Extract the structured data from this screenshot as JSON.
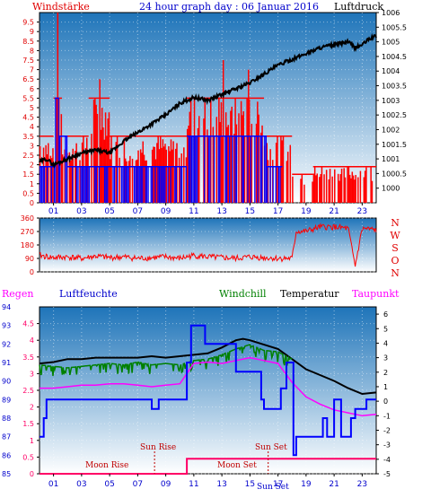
{
  "header": {
    "left_label": "Windstärke",
    "title": "24 hour graph day : 06 Januar 2016",
    "right_label": "Luftdruck"
  },
  "colors": {
    "wind_gust": "#ff0000",
    "wind_avg": "#0000ff",
    "pressure": "#000000",
    "wind_dir": "#ff0000",
    "temperature": "#000000",
    "windchill": "#008000",
    "dewpoint": "#ff00ff",
    "humidity": "#0000ff",
    "rain": "#ff0066",
    "sky_top": "#1e74b9",
    "sky_bottom": "#ffffff"
  },
  "lower_legend": {
    "regen": "Regen",
    "luftfeuchte": "Luftfeuchte",
    "windchill": "Windchill",
    "temperatur": "Temperatur",
    "taupunkt": "Taupunkt"
  },
  "astro_labels": {
    "moon_rise": "Moon Rise",
    "sun_rise": "Sun Rise",
    "moon_set": "Moon Set",
    "sun_set": "Sun Set",
    "sun_set_axis": "Sun Set"
  },
  "chart_data": [
    {
      "type": "bar",
      "name": "wind-pressure",
      "x_ticks": [
        "01",
        "03",
        "05",
        "07",
        "09",
        "11",
        "13",
        "15",
        "17",
        "19",
        "21",
        "23"
      ],
      "y_left_ticks": [
        "0",
        "0.5",
        "1",
        "1.5",
        "2",
        "2.5",
        "3",
        "3.5",
        "4",
        "4.5",
        "5",
        "5.5",
        "6",
        "6.5",
        "7",
        "7.5",
        "8",
        "8.5",
        "9",
        "9.5"
      ],
      "ylim_left": [
        0,
        10
      ],
      "y_right_ticks": [
        "1000",
        "1000.5",
        "1001",
        "1001.5",
        "1002",
        "1002.5",
        "1003",
        "1003.5",
        "1004",
        "1004.5",
        "1005",
        "1005.5",
        "1006"
      ],
      "ylim_right": [
        999.5,
        1006
      ],
      "xlim": [
        0,
        24
      ],
      "gust_segments": [
        {
          "start": 0.0,
          "end": 1.0,
          "value": 3.5
        },
        {
          "start": 1.0,
          "end": 1.6,
          "value": 5.5
        },
        {
          "start": 1.6,
          "end": 3.5,
          "value": 3.5
        },
        {
          "start": 3.5,
          "end": 5.0,
          "value": 5.5
        },
        {
          "start": 5.0,
          "end": 10.5,
          "value": 3.5
        },
        {
          "start": 10.5,
          "end": 16.0,
          "value": 5.5
        },
        {
          "start": 16.0,
          "end": 18.0,
          "value": 3.5
        },
        {
          "start": 18.0,
          "end": 19.5,
          "value": 1.5
        },
        {
          "start": 19.5,
          "end": 24.0,
          "value": 1.9
        }
      ],
      "gust_peaks": [
        {
          "x": 1.3,
          "value": 10
        },
        {
          "x": 4.3,
          "value": 6.5
        },
        {
          "x": 13.1,
          "value": 7.5
        },
        {
          "x": 14.9,
          "value": 7.0
        }
      ],
      "avg_segments": [
        {
          "start": 0.0,
          "end": 1.1,
          "value": 1.9
        },
        {
          "start": 1.1,
          "end": 1.4,
          "value": 5.5
        },
        {
          "start": 1.4,
          "end": 2.0,
          "value": 3.5
        },
        {
          "start": 2.0,
          "end": 10.5,
          "value": 1.9
        },
        {
          "start": 10.5,
          "end": 16.2,
          "value": 3.5
        },
        {
          "start": 16.2,
          "end": 17.3,
          "value": 1.9
        }
      ],
      "pressure": {
        "x": [
          0,
          0.5,
          1,
          1.5,
          2,
          3,
          4,
          5,
          6,
          7,
          8,
          9,
          10,
          11,
          12,
          13,
          14,
          15,
          16,
          17,
          18,
          19,
          20,
          21,
          22,
          22.5,
          23,
          23.5,
          24
        ],
        "values": [
          1000.9,
          1001.0,
          1000.8,
          1000.9,
          1001.0,
          1001.2,
          1001.3,
          1001.2,
          1001.6,
          1001.9,
          1002.2,
          1002.5,
          1002.9,
          1003.1,
          1003.0,
          1003.2,
          1003.4,
          1003.6,
          1003.9,
          1004.2,
          1004.4,
          1004.6,
          1004.8,
          1004.9,
          1005.0,
          1004.8,
          1004.9,
          1005.1,
          1005.2
        ]
      }
    },
    {
      "type": "line",
      "name": "wind-direction",
      "x_ticks": [
        "01",
        "03",
        "05",
        "07",
        "09",
        "11",
        "13",
        "15",
        "17",
        "19",
        "21",
        "23"
      ],
      "y_ticks": [
        "0",
        "90",
        "180",
        "270",
        "360"
      ],
      "ylim": [
        0,
        360
      ],
      "compass_labels": [
        "N",
        "W",
        "S",
        "O",
        "N"
      ],
      "series": [
        {
          "x": [
            0,
            1,
            2,
            3,
            4,
            5,
            6,
            7,
            8,
            9,
            10,
            11,
            12,
            13,
            14,
            15,
            16,
            17,
            18,
            18.3,
            19,
            20,
            21,
            22,
            22.5,
            23,
            24
          ],
          "values": [
            110,
            95,
            100,
            90,
            105,
            95,
            100,
            90,
            95,
            100,
            90,
            110,
            100,
            95,
            90,
            100,
            95,
            90,
            90,
            270,
            270,
            300,
            300,
            290,
            40,
            290,
            280
          ]
        }
      ]
    },
    {
      "type": "line",
      "name": "temperature-humidity",
      "x_ticks": [
        "01",
        "03",
        "05",
        "07",
        "09",
        "11",
        "13",
        "15",
        "17",
        "19",
        "21",
        "23"
      ],
      "y_left_outer_ticks": [
        "85",
        "86",
        "87",
        "88",
        "89",
        "90",
        "91",
        "92",
        "93",
        "94"
      ],
      "ylim_left_outer": [
        85,
        94
      ],
      "y_left_inner_ticks": [
        "0",
        "0.5",
        "1",
        "1.5",
        "2",
        "2.5",
        "3",
        "3.5",
        "4",
        "4.5"
      ],
      "ylim_left_inner": [
        0,
        5
      ],
      "y_right_ticks": [
        "-5",
        "-4",
        "-3",
        "-2",
        "-1",
        "0",
        "1",
        "2",
        "3",
        "4",
        "5",
        "6"
      ],
      "ylim_right": [
        -5,
        6.5
      ],
      "series": [
        {
          "name": "Temperatur",
          "x": [
            0,
            1,
            2,
            3,
            4,
            5,
            6,
            7,
            8,
            9,
            10,
            11,
            12,
            13,
            14,
            14.5,
            15,
            16,
            17,
            18,
            19,
            20,
            21,
            22,
            23,
            24
          ],
          "values": [
            2.6,
            2.7,
            2.9,
            2.9,
            3.0,
            3.0,
            3.0,
            3.0,
            3.1,
            3.0,
            3.1,
            3.2,
            3.3,
            3.7,
            4.2,
            4.3,
            4.2,
            3.9,
            3.6,
            2.9,
            2.2,
            1.8,
            1.4,
            0.9,
            0.5,
            0.6
          ]
        },
        {
          "name": "Windchill",
          "x": [
            0,
            1,
            2,
            3,
            4,
            5,
            6,
            7,
            8,
            9,
            10,
            11,
            12,
            13,
            14,
            15,
            16,
            17,
            18
          ],
          "values": [
            2.5,
            2.4,
            2.3,
            2.4,
            2.5,
            2.6,
            2.5,
            2.7,
            2.5,
            2.6,
            2.5,
            2.8,
            2.9,
            3.2,
            3.6,
            3.9,
            3.5,
            3.4,
            2.9
          ]
        },
        {
          "name": "Taupunkt",
          "x": [
            0,
            1,
            2,
            3,
            4,
            5,
            6,
            7,
            8,
            9,
            10,
            11,
            12,
            13,
            14,
            15,
            16,
            17,
            18,
            19,
            20,
            21,
            22,
            23,
            24
          ],
          "values": [
            0.9,
            0.9,
            1.0,
            1.1,
            1.1,
            1.2,
            1.2,
            1.1,
            1.0,
            1.1,
            1.2,
            2.6,
            2.7,
            2.6,
            2.8,
            3.0,
            2.8,
            2.6,
            1.3,
            0.3,
            -0.2,
            -0.6,
            -0.8,
            -1.0,
            -0.9
          ]
        },
        {
          "name": "Luftfeuchte",
          "x": [
            0,
            0.3,
            0.3,
            0.5,
            0.5,
            3,
            3,
            8,
            8,
            8.5,
            8.5,
            10.5,
            10.5,
            10.8,
            10.8,
            11.8,
            11.8,
            14,
            14,
            15.8,
            15.8,
            16,
            16,
            17.2,
            17.2,
            17.6,
            17.6,
            18.1,
            18.1,
            18.3,
            18.3,
            20.2,
            20.2,
            20.5,
            20.5,
            21,
            21,
            21.5,
            21.5,
            22.2,
            22.2,
            22.5,
            22.5,
            23.3,
            23.3,
            24
          ],
          "values": [
            87,
            87,
            88,
            88,
            89,
            89,
            89,
            89,
            88.5,
            88.5,
            89,
            89,
            91,
            91,
            93,
            93,
            92,
            92,
            90.5,
            90.5,
            89,
            89,
            88.5,
            88.5,
            89.6,
            89.6,
            91,
            91,
            86,
            86,
            87,
            87,
            88,
            88,
            87,
            87,
            89,
            89,
            87,
            87,
            88,
            88,
            88.5,
            88.5,
            89,
            89
          ]
        },
        {
          "name": "Regen",
          "x": [
            0,
            10.5,
            10.5,
            24
          ],
          "values": [
            0,
            0,
            0.45,
            0.45
          ]
        }
      ],
      "sun_rise_hour": 8.2,
      "sun_set_hour": 16.3
    }
  ]
}
